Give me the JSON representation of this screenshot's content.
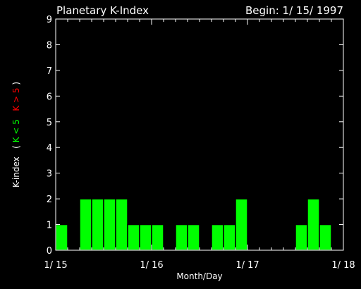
{
  "chart_data": {
    "type": "bar",
    "title": "Planetary K-Index",
    "subtitle": "Begin: 1/ 15/ 1997",
    "xlabel": "Month/Day",
    "ylabel": {
      "prefix": "K-index",
      "open": "(",
      "low": "K < 5",
      "high": "K > 5",
      "close": ")",
      "low_color": "#00ff00",
      "high_color": "#ff0000"
    },
    "ylim": [
      0,
      9
    ],
    "yticks": [
      "0",
      "1",
      "2",
      "3",
      "4",
      "5",
      "6",
      "7",
      "8",
      "9"
    ],
    "x_range_days": [
      0,
      3
    ],
    "x_tick_labels": [
      "1/ 15",
      "1/ 16",
      "1/ 17",
      "1/ 18"
    ],
    "bar_width_days": 0.125,
    "bar_color": "#00ff00",
    "bar_edge_color": "#000000",
    "bars": [
      {
        "start_day": 0.0,
        "value": 1
      },
      {
        "start_day": 0.25,
        "value": 2
      },
      {
        "start_day": 0.375,
        "value": 2
      },
      {
        "start_day": 0.5,
        "value": 2
      },
      {
        "start_day": 0.625,
        "value": 2
      },
      {
        "start_day": 0.75,
        "value": 1
      },
      {
        "start_day": 0.875,
        "value": 1
      },
      {
        "start_day": 1.0,
        "value": 1
      },
      {
        "start_day": 1.25,
        "value": 1
      },
      {
        "start_day": 1.375,
        "value": 1
      },
      {
        "start_day": 1.625,
        "value": 1
      },
      {
        "start_day": 1.75,
        "value": 1
      },
      {
        "start_day": 1.875,
        "value": 2
      },
      {
        "start_day": 2.5,
        "value": 1
      },
      {
        "start_day": 2.625,
        "value": 2
      },
      {
        "start_day": 2.75,
        "value": 1
      }
    ],
    "axis_color": "#ffffff",
    "background": "#000000",
    "grid": false
  }
}
